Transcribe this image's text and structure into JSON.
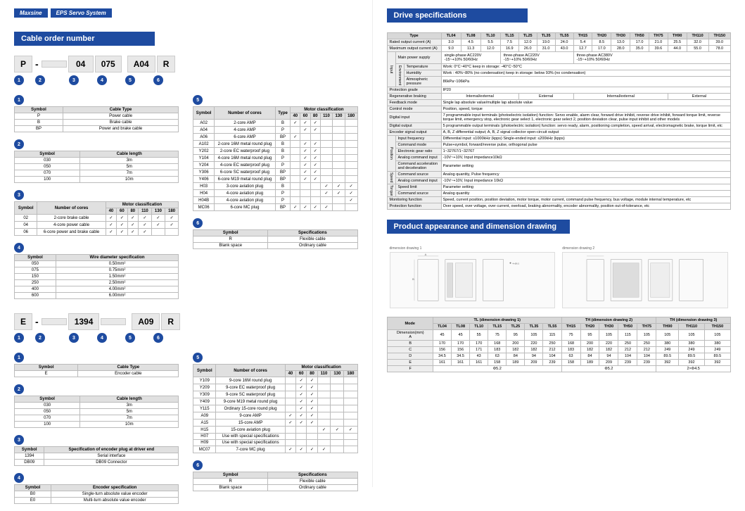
{
  "brand": {
    "name": "Maxsine",
    "sub": "EPS Servo System"
  },
  "left": {
    "title": "Cable order number",
    "code1": {
      "parts": [
        "P",
        "",
        "04",
        "075",
        "A04",
        "R"
      ],
      "nums": [
        "1",
        "2",
        "3",
        "4",
        "5",
        "6"
      ]
    },
    "code2": {
      "parts": [
        "E",
        "",
        "1394",
        "",
        "A09",
        "R"
      ],
      "nums": [
        "1",
        "2",
        "3",
        "4",
        "5",
        "6"
      ]
    },
    "p_tables": {
      "t1": {
        "h": [
          "Symbol",
          "Cable Type"
        ],
        "r": [
          [
            "P",
            "Power cable"
          ],
          [
            "B",
            "Brake cable"
          ],
          [
            "BP",
            "Power and brake cable"
          ]
        ]
      },
      "t2": {
        "h": [
          "Symbol",
          "Cable length"
        ],
        "r": [
          [
            "030",
            "3m"
          ],
          [
            "050",
            "5m"
          ],
          [
            "070",
            "7m"
          ],
          [
            "100",
            "10m"
          ]
        ]
      },
      "t3": {
        "h": [
          "Symbol",
          "Number of cores"
        ],
        "mc": [
          "40",
          "60",
          "80",
          "110",
          "130",
          "180"
        ],
        "r": [
          [
            "02",
            "2-core brake cable",
            "✓",
            "✓",
            "✓",
            "✓",
            "✓",
            "✓"
          ],
          [
            "04",
            "4-core power cable",
            "✓",
            "✓",
            "✓",
            "✓",
            "✓",
            "✓"
          ],
          [
            "06",
            "6-core power and brake cable",
            "✓",
            "✓",
            "✓",
            "✓",
            "",
            ""
          ]
        ]
      },
      "t4": {
        "h": [
          "Symbol",
          "Wire diameter specification"
        ],
        "r": [
          [
            "050",
            "0.50mm²"
          ],
          [
            "075",
            "0.75mm²"
          ],
          [
            "150",
            "1.50mm²"
          ],
          [
            "250",
            "2.50mm²"
          ],
          [
            "400",
            "4.00mm²"
          ],
          [
            "600",
            "6.00mm²"
          ]
        ]
      },
      "t5": {
        "h": [
          "Symbol",
          "Number of cores",
          "Type"
        ],
        "mc": [
          "40",
          "60",
          "80",
          "110",
          "130",
          "180"
        ],
        "r": [
          [
            "A02",
            "2-core AMP",
            "B",
            "✓",
            "✓",
            "✓",
            "",
            "",
            ""
          ],
          [
            "A04",
            "4-core AMP",
            "P",
            "",
            "✓",
            "✓",
            "",
            "",
            ""
          ],
          [
            "A06",
            "6-core AMP",
            "BP",
            "✓",
            "",
            "",
            "",
            "",
            ""
          ],
          [
            "A102",
            "2-core 16M metal round plug",
            "B",
            "",
            "✓",
            "✓",
            "",
            "",
            ""
          ],
          [
            "Y202",
            "2-core EC waterproof plug",
            "B",
            "",
            "✓",
            "✓",
            "",
            "",
            ""
          ],
          [
            "Y104",
            "4-core 16M metal round plug",
            "P",
            "",
            "✓",
            "✓",
            "",
            "",
            ""
          ],
          [
            "Y204",
            "4-core EC waterproof plug",
            "P",
            "",
            "✓",
            "✓",
            "",
            "",
            ""
          ],
          [
            "Y306",
            "6-core SC waterproof plug",
            "BP",
            "",
            "✓",
            "✓",
            "",
            "",
            ""
          ],
          [
            "Y406",
            "6-core M19 metal round plug",
            "BP",
            "",
            "✓",
            "✓",
            "",
            "",
            ""
          ],
          [
            "H03",
            "3-core aviation plug",
            "B",
            "",
            "",
            "",
            "✓",
            "✓",
            "✓"
          ],
          [
            "H04",
            "4-core aviation plug",
            "P",
            "",
            "",
            "",
            "✓",
            "✓",
            "✓"
          ],
          [
            "H04B",
            "4-core aviation plug",
            "P",
            "",
            "",
            "",
            "",
            "",
            "✓"
          ],
          [
            "MC06",
            "6-core MC plug",
            "BP",
            "✓",
            "✓",
            "✓",
            "✓",
            "",
            ""
          ]
        ]
      },
      "t6": {
        "h": [
          "Symbol",
          "Specifications"
        ],
        "r": [
          [
            "R",
            "Flexible cable"
          ],
          [
            "Blank space",
            "Ordinary cable"
          ]
        ]
      }
    },
    "e_tables": {
      "t1": {
        "h": [
          "Symbol",
          "Cable Type"
        ],
        "r": [
          [
            "E",
            "Encoder cable"
          ]
        ]
      },
      "t2": {
        "h": [
          "Symbol",
          "Cable length"
        ],
        "r": [
          [
            "030",
            "3m"
          ],
          [
            "050",
            "5m"
          ],
          [
            "070",
            "7m"
          ],
          [
            "100",
            "10m"
          ]
        ]
      },
      "t3": {
        "h": [
          "Symbol",
          "Specification of encoder plug at driver end"
        ],
        "r": [
          [
            "1394",
            "Serial interface"
          ],
          [
            "DB09",
            "DB09 Connector"
          ]
        ]
      },
      "t4": {
        "h": [
          "Symbol",
          "Encoder specification"
        ],
        "r": [
          [
            "B0",
            "Single-turn absolute value encoder"
          ],
          [
            "E0",
            "Multi-turn absolute value encoder"
          ]
        ]
      },
      "t5": {
        "h": [
          "Symbol",
          "Number of cores"
        ],
        "mc": [
          "40",
          "60",
          "80",
          "110",
          "130",
          "180"
        ],
        "r": [
          [
            "Y109",
            "9-core 16M round plug",
            "",
            "✓",
            "✓",
            "",
            "",
            ""
          ],
          [
            "Y209",
            "9-core EC waterproof plug",
            "",
            "✓",
            "✓",
            "",
            "",
            ""
          ],
          [
            "Y309",
            "9-core SC waterproof plug",
            "",
            "✓",
            "✓",
            "",
            "",
            ""
          ],
          [
            "Y409",
            "9-core M19 metal round plug",
            "",
            "✓",
            "✓",
            "",
            "",
            ""
          ],
          [
            "Y115",
            "Ordinary 15-core round plug",
            "",
            "✓",
            "✓",
            "",
            "",
            ""
          ],
          [
            "A09",
            "9-core AMP",
            "✓",
            "✓",
            "✓",
            "",
            "",
            ""
          ],
          [
            "A15",
            "15-core AMP",
            "✓",
            "✓",
            "✓",
            "",
            "",
            ""
          ],
          [
            "H15",
            "15-core aviation plug",
            "",
            "",
            "",
            "✓",
            "✓",
            "✓"
          ],
          [
            "H07",
            "Use with special specifications",
            "",
            "",
            "",
            "",
            "",
            ""
          ],
          [
            "H09",
            "Use with special specifications",
            "",
            "",
            "",
            "",
            "",
            ""
          ],
          [
            "MC07",
            "7-core MC plug",
            "✓",
            "✓",
            "✓",
            "✓",
            "",
            ""
          ]
        ]
      },
      "t6": {
        "h": [
          "Symbol",
          "Specifications"
        ],
        "r": [
          [
            "R",
            "Flexible cable"
          ],
          [
            "Blank space",
            "Ordinary cable"
          ]
        ]
      }
    }
  },
  "right": {
    "title1": "Drive specifications",
    "title2": "Product appearance and dimension drawing",
    "spec_cols": [
      "TL04",
      "TL08",
      "TL10",
      "TL15",
      "TL25",
      "TL35",
      "TL55",
      "TH15",
      "TH20",
      "TH30",
      "TH50",
      "TH75",
      "TH90",
      "TH110",
      "TH150"
    ],
    "rated": [
      "3.0",
      "4.5",
      "5.5",
      "7.5",
      "12.0",
      "19.0",
      "24.0",
      "5.4",
      "8.5",
      "13.0",
      "17.0",
      "21.0",
      "25.5",
      "32.0",
      "39.0"
    ],
    "max": [
      "9.0",
      "11.3",
      "12.0",
      "16.9",
      "26.0",
      "31.0",
      "43.0",
      "12.7",
      "17.0",
      "28.0",
      "35.0",
      "39.6",
      "44.0",
      "55.0",
      "78.0"
    ],
    "power": [
      {
        "l": "single-phase AC220V",
        "s": "-15~+10% 50/60Hz",
        "span": 3
      },
      {
        "l": "three-phase AC220V",
        "s": "-15~+10% 50/60Hz",
        "span": 4
      },
      {
        "l": "three-phase AC380V",
        "s": "-15~+10% 50/60Hz",
        "span": 8
      }
    ],
    "env": [
      [
        "Temperature",
        "Work: 0°C~40°C    keep in storage: -40°C~50°C"
      ],
      [
        "Humidity",
        "Work : 40%~80% (no condensation)    keep in storage: below 93% (no condensation)"
      ],
      [
        "Atmospheric pressure",
        "86kPa~106kPa"
      ]
    ],
    "rows": [
      [
        "Protection grade",
        "IP20"
      ],
      [
        "Regenerative braking",
        "Internal/external|External|Internal/external|External"
      ],
      [
        "Feedback mode",
        "Single lap absolute value/multiple lap absolute value"
      ],
      [
        "Control mode",
        "Position, speed, torque"
      ],
      [
        "Digital input",
        "7 programmable input terminals (photoelectric isolation) function: Servo enable, alarm clear, forward drive inhibit, reverse drive inhibit, forward torque limit, reverse torque limit, emergency stop, electronic gear select 1, electronic gear select 2, position deviation clear, pulse input inhibit and other models"
      ],
      [
        "Digital output",
        "5 programmable output terminals (photoelectric isolation) function: servo ready, alarm, positioning completion, speed arrival, electromagnetic brake, torque limit, etc"
      ],
      [
        "Encoder signal output",
        "A, B, Z differential output; A, B, Z signal collector open-circuit output"
      ]
    ],
    "position": [
      [
        "Input frequency",
        "Differential input: ≤1000kHz (kpps)  Single-ended input: ≤200kHz (kpps)"
      ],
      [
        "Command mode",
        "Pulse+symbol, forward/reverse pulse, orthogonal pulse"
      ],
      [
        "Electronic gear ratio",
        "1~32767/1~32767"
      ],
      [
        "Analog command input",
        "-10V~+10V, Input impedance10kΩ"
      ],
      [
        "Command acceleration and deceleration",
        "Parameter setting"
      ]
    ],
    "speed": [
      [
        "Command source",
        "Analog quantity, Pulse frequency"
      ],
      [
        "Analog command input",
        "-10V~+10V, Input impedance 10kΩ"
      ]
    ],
    "torque": [
      [
        "Speed limit",
        "Parameter setting"
      ],
      [
        "Command source",
        "Analog quantity"
      ]
    ],
    "bottom": [
      [
        "Monitoring function",
        "Speed, current position, position deviation, motor torque, motor current, command pulse frequency, bus voltage, module internal temperature, etc"
      ],
      [
        "Protection function",
        "Over speed, over voltage, over current, overload, braking abnormality, encoder abnormality, position out-of-tolerance, etc"
      ]
    ],
    "dim_cols": [
      "TL04",
      "TL08",
      "TL10",
      "TL15",
      "TL25",
      "TL35",
      "TL55",
      "TH15",
      "TH20",
      "TH30",
      "TH50",
      "TH75",
      "TH90",
      "TH110",
      "TH150"
    ],
    "dim_groups": [
      {
        "l": "TL (dimension drawing 1)",
        "n": 7
      },
      {
        "l": "TH (dimension drawing 2)",
        "n": 5
      },
      {
        "l": "TH (dimension drawing 3)",
        "n": 3
      }
    ],
    "dim_rows": [
      [
        "A",
        "45",
        "45",
        "55",
        "75",
        "95",
        "105",
        "115",
        "75",
        "95",
        "105",
        "115",
        "105",
        "105",
        "105",
        "105"
      ],
      [
        "B",
        "170",
        "170",
        "170",
        "168",
        "200",
        "220",
        "250",
        "168",
        "200",
        "220",
        "250",
        "250",
        "380",
        "380",
        "380"
      ],
      [
        "C",
        "156",
        "156",
        "171",
        "183",
        "182",
        "182",
        "212",
        "183",
        "182",
        "182",
        "212",
        "212",
        "249",
        "249",
        "249"
      ],
      [
        "D",
        "34.5",
        "34.5",
        "43",
        "63",
        "84",
        "94",
        "104",
        "63",
        "84",
        "94",
        "104",
        "104",
        "89.5",
        "89.5",
        "89.5"
      ],
      [
        "E",
        "161",
        "161",
        "161",
        "158",
        "189",
        "209",
        "239",
        "158",
        "189",
        "209",
        "239",
        "239",
        "392",
        "392",
        "392"
      ],
      [
        "F",
        "Φ5.2|Φ5.2|2×Φ4.5"
      ]
    ],
    "dim_hdr": "Dimension(mm)",
    "mode_hdr": "Mode",
    "draw1": "dimension drawing 1",
    "draw2": "dimension drawing 2",
    "type_hdr": "Type",
    "rated_lbl": "Rated output current (A)",
    "max_lbl": "Maximum output current (A)",
    "power_lbl": "Main power supply",
    "input_lbl": "Input",
    "env_lbl": "Environment",
    "pos_lbl": "Position",
    "spd_lbl": "Speed",
    "trq_lbl": "Torque"
  },
  "colors": {
    "blue": "#1e4ba0",
    "grey": "#e0e0e0",
    "border": "#bbb"
  }
}
